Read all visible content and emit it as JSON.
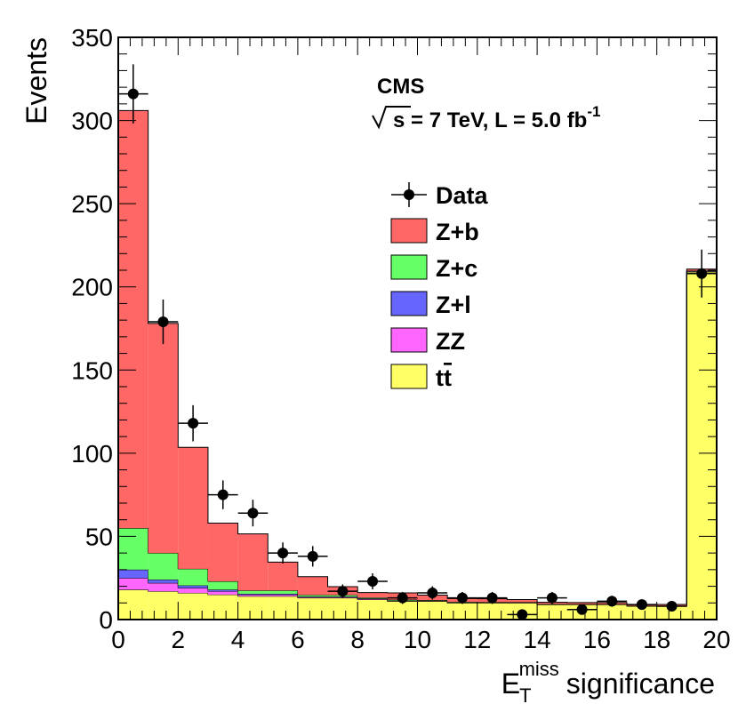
{
  "chart_data": {
    "type": "bar",
    "stacked": true,
    "title": "",
    "annotation": {
      "experiment": "CMS",
      "energy_prefix": "s = 7 TeV, L = 5.0 fb",
      "lumi_exponent": "-1"
    },
    "xlabel": {
      "base": "E",
      "subscript": "T",
      "superscript": "miss",
      "suffix": "significance"
    },
    "ylabel": "Events",
    "xlim": [
      0,
      20
    ],
    "ylim": [
      0,
      350
    ],
    "x_ticks": [
      0,
      2,
      4,
      6,
      8,
      10,
      12,
      14,
      16,
      18,
      20
    ],
    "y_ticks": [
      0,
      50,
      100,
      150,
      200,
      250,
      300,
      350
    ],
    "bin_edges": [
      0,
      1,
      2,
      3,
      4,
      5,
      6,
      7,
      8,
      9,
      10,
      11,
      12,
      13,
      14,
      15,
      16,
      17,
      18,
      19,
      20
    ],
    "series": [
      {
        "name": "t̅t",
        "label_base": "t",
        "label_bar": "t",
        "color": "#ffff66",
        "values": [
          18,
          17,
          16,
          15,
          14,
          14,
          13,
          13,
          12,
          11,
          11,
          10,
          10,
          10,
          9,
          9,
          9,
          8,
          8,
          209
        ]
      },
      {
        "name": "ZZ",
        "label": "ZZ",
        "color": "#ff66ff",
        "values": [
          7,
          5,
          3,
          2,
          1,
          1,
          0.5,
          0.5,
          0.5,
          0.3,
          0.3,
          0.2,
          0.2,
          0.2,
          0.1,
          0.1,
          0.1,
          0.1,
          0.1,
          0.3
        ]
      },
      {
        "name": "Z+l",
        "label": "Z+l",
        "color": "#6666ff",
        "values": [
          5,
          2,
          1.5,
          1,
          0.5,
          0.5,
          0.3,
          0.3,
          0.2,
          0.2,
          0.1,
          0.1,
          0.1,
          0.1,
          0.1,
          0.1,
          0.1,
          0.1,
          0.1,
          0.1
        ]
      },
      {
        "name": "Z+c",
        "label": "Z+c",
        "color": "#66ff66",
        "values": [
          25,
          16,
          10,
          5,
          2,
          2,
          1,
          1,
          0.5,
          0.5,
          0.3,
          0.3,
          0.2,
          0.2,
          0.2,
          0.1,
          0.1,
          0.1,
          0.1,
          0.3
        ]
      },
      {
        "name": "Z+b",
        "label": "Z+b",
        "color": "#ff6666",
        "values": [
          251,
          138,
          73,
          35,
          34,
          17,
          11,
          5,
          3,
          4,
          3,
          2,
          2,
          1.5,
          1,
          0.9,
          0.9,
          0.8,
          0.8,
          1
        ]
      }
    ],
    "data_points": {
      "name": "Data",
      "label": "Data",
      "x": [
        0.5,
        1.5,
        2.5,
        3.5,
        4.5,
        5.5,
        6.5,
        7.5,
        8.5,
        9.5,
        10.5,
        11.5,
        12.5,
        13.5,
        14.5,
        15.5,
        16.5,
        17.5,
        18.5,
        19.5
      ],
      "y": [
        316,
        179,
        118,
        75,
        64,
        40,
        38,
        17,
        23,
        13,
        16,
        13,
        13,
        3,
        13,
        6,
        11,
        9,
        8,
        208
      ]
    },
    "legend_position": "top-center"
  }
}
